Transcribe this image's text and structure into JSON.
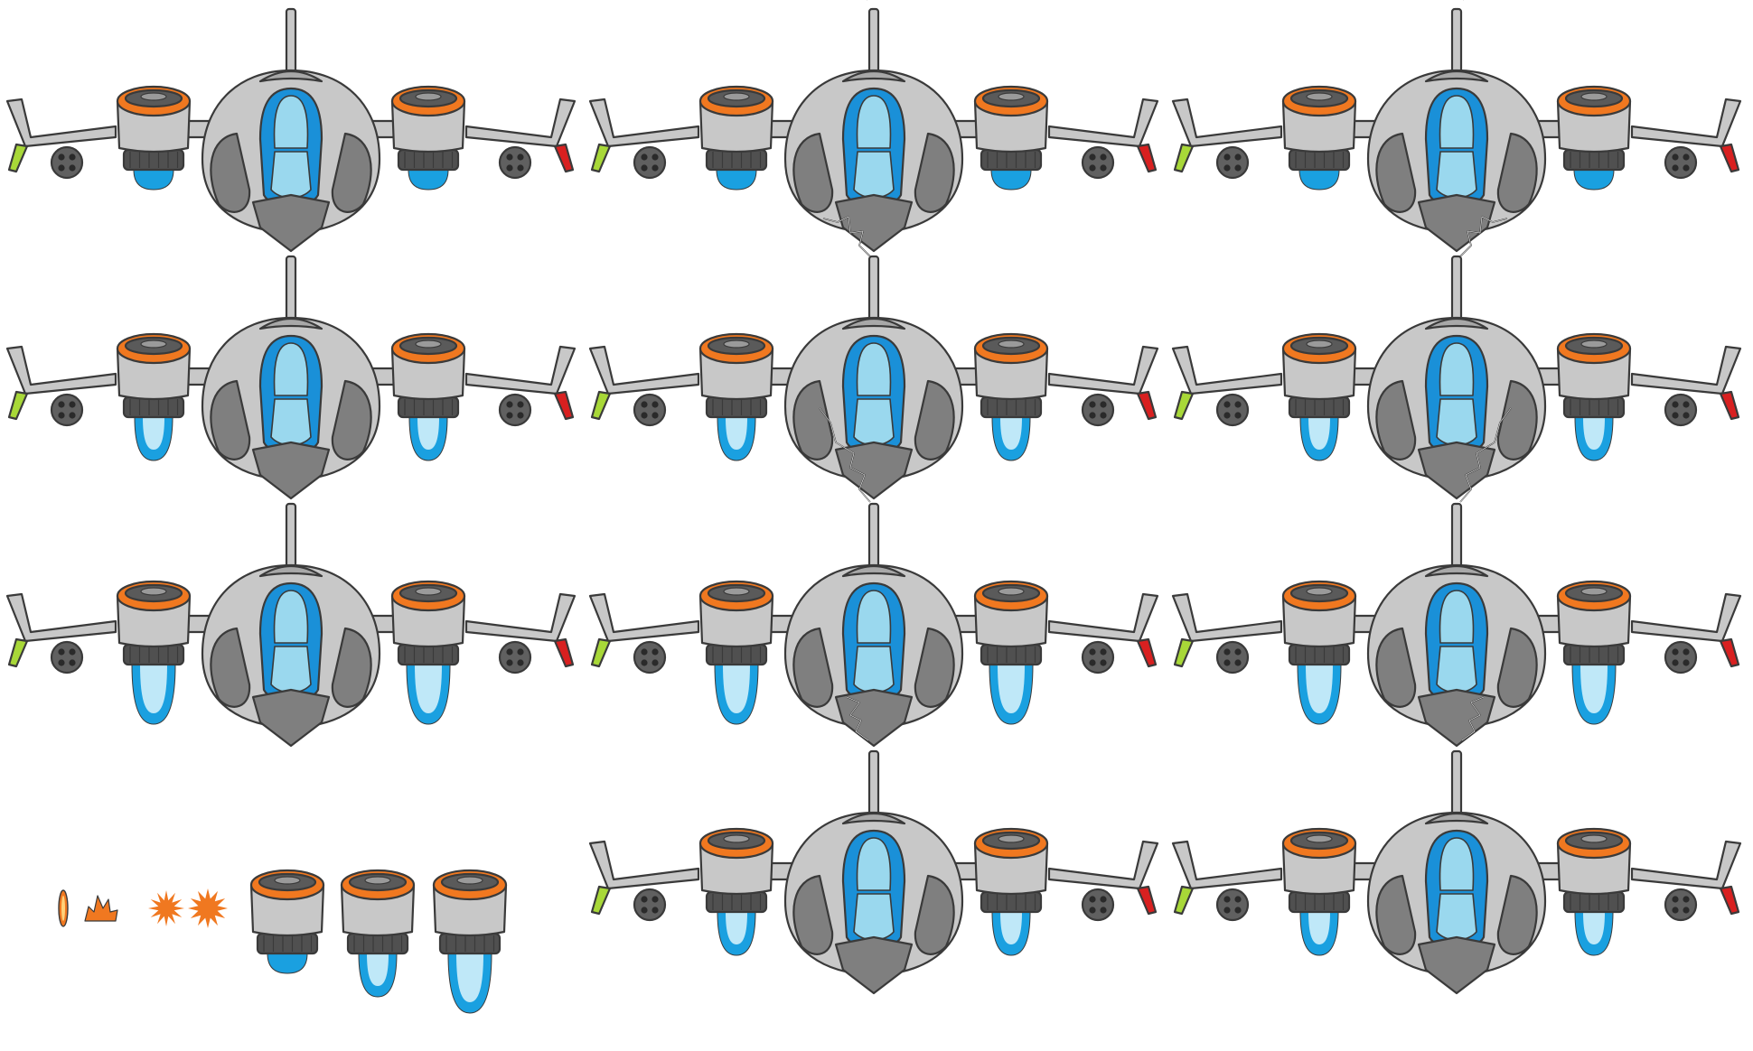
{
  "sprite_sheet": {
    "background": "#ffffff",
    "palette": {
      "outline": "#3a3a3a",
      "hull_light": "#c8c8c8",
      "hull_dark": "#7f7f7f",
      "hull_mid": "#a8a8a8",
      "cockpit_frame": "#1a90d8",
      "cockpit_glass": "#9ad8ee",
      "engine_ring": "#f07820",
      "exhaust_ring": "#505050",
      "thrust_flame": "#1aa0e0",
      "thrust_core": "#bfe8f8",
      "wing_tip_left": "#a8d838",
      "wing_tip_right": "#d82020",
      "gun_pod": "#606060",
      "spark": "#f07820"
    },
    "ship_frames": [
      {
        "row": 0,
        "col": 0,
        "thrust": 0,
        "antenna_damage": "none"
      },
      {
        "row": 0,
        "col": 1,
        "thrust": 0,
        "antenna_damage": "tall-left"
      },
      {
        "row": 0,
        "col": 2,
        "thrust": 0,
        "antenna_damage": "tall-right"
      },
      {
        "row": 1,
        "col": 0,
        "thrust": 1,
        "antenna_damage": "none"
      },
      {
        "row": 1,
        "col": 1,
        "thrust": 1,
        "antenna_damage": "short-left"
      },
      {
        "row": 1,
        "col": 2,
        "thrust": 1,
        "antenna_damage": "short-right"
      },
      {
        "row": 2,
        "col": 0,
        "thrust": 2,
        "antenna_damage": "none"
      },
      {
        "row": 2,
        "col": 1,
        "thrust": 2,
        "antenna_damage": "mid-left"
      },
      {
        "row": 2,
        "col": 2,
        "thrust": 2,
        "antenna_damage": "mid-right"
      },
      {
        "row": 3,
        "col": 1,
        "thrust": 1,
        "antenna_damage": "small-left"
      },
      {
        "row": 3,
        "col": 2,
        "thrust": 1,
        "antenna_damage": "small-right"
      }
    ],
    "extras": {
      "projectiles": [
        {
          "name": "bullet",
          "type": "bullet"
        },
        {
          "name": "muzzle-flash",
          "type": "flash"
        },
        {
          "name": "spark-small",
          "type": "spark"
        },
        {
          "name": "spark-large",
          "type": "spark"
        }
      ],
      "engine_frames": [
        {
          "thrust": 0
        },
        {
          "thrust": 1
        },
        {
          "thrust": 2
        }
      ]
    }
  }
}
